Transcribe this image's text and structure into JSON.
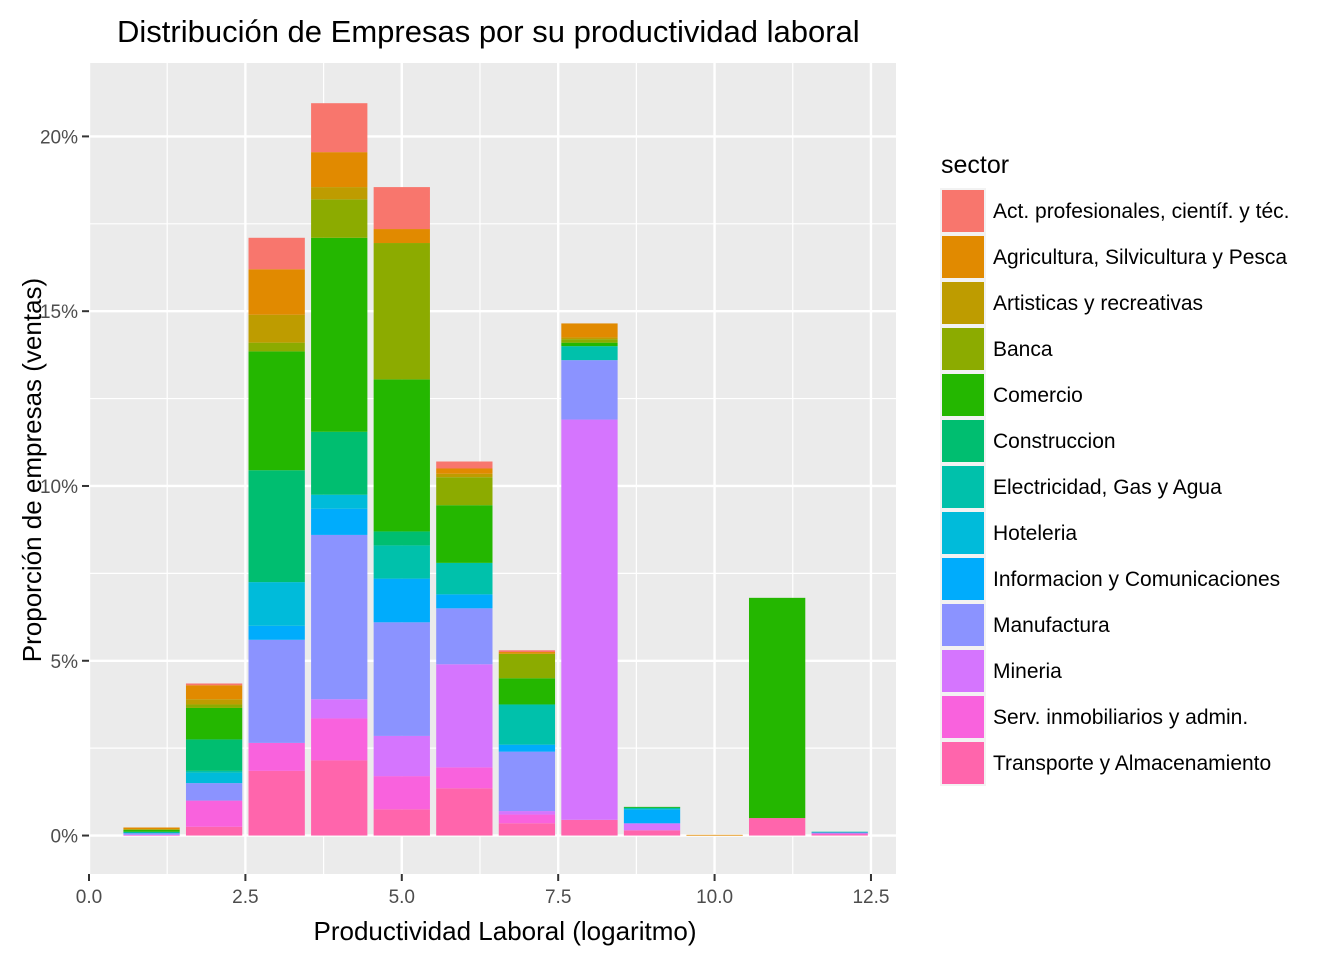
{
  "chart_data": {
    "type": "bar",
    "stacked": true,
    "title": "Distribución de Empresas por su productividad laboral",
    "xlabel": "Productividad Laboral (logaritmo)",
    "ylabel": "Proporción de empresas (ventas)",
    "xlim": [
      0,
      12.9
    ],
    "ylim": [
      -1.1,
      22.1
    ],
    "x_ticks": [
      0.0,
      2.5,
      5.0,
      7.5,
      10.0,
      12.5
    ],
    "x_tick_labels": [
      "0.0",
      "2.5",
      "5.0",
      "7.5",
      "10.0",
      "12.5"
    ],
    "y_ticks": [
      0,
      5,
      10,
      15,
      20
    ],
    "y_tick_labels": [
      "0%",
      "5%",
      "10%",
      "15%",
      "20%"
    ],
    "grid": true,
    "bar_width": 0.9,
    "x": [
      1,
      2,
      3,
      4,
      5,
      6,
      7,
      8,
      9,
      10,
      11,
      12
    ],
    "legend": {
      "title": "sector",
      "position": "right"
    },
    "series": [
      {
        "name": "Act. profesionales, científ. y téc.",
        "color": "#F8766D",
        "values": [
          0.0,
          0.05,
          0.9,
          1.4,
          1.2,
          0.2,
          0.05,
          0.0,
          0.0,
          0.0,
          0.0,
          0.0
        ]
      },
      {
        "name": "Agricultura, Silvicultura y Pesca",
        "color": "#E18A00",
        "values": [
          0.05,
          0.4,
          1.3,
          1.0,
          0.4,
          0.15,
          0.05,
          0.4,
          0.0,
          0.02,
          0.0,
          0.0
        ]
      },
      {
        "name": "Artisticas y recreativas",
        "color": "#BE9C00",
        "values": [
          0.0,
          0.15,
          0.8,
          0.35,
          0.0,
          0.1,
          0.0,
          0.05,
          0.0,
          0.0,
          0.0,
          0.0
        ]
      },
      {
        "name": "Banca",
        "color": "#8CAB00",
        "values": [
          0.02,
          0.1,
          0.25,
          1.1,
          3.9,
          0.8,
          0.7,
          0.1,
          0.0,
          0.0,
          0.0,
          0.0
        ]
      },
      {
        "name": "Comercio",
        "color": "#24B700",
        "values": [
          0.05,
          0.9,
          3.4,
          5.55,
          4.35,
          1.65,
          0.75,
          0.1,
          0.02,
          0.0,
          6.3,
          0.0
        ]
      },
      {
        "name": "Construccion",
        "color": "#00BE70",
        "values": [
          0.02,
          0.9,
          3.2,
          1.8,
          0.4,
          0.0,
          0.0,
          0.0,
          0.0,
          0.0,
          0.0,
          0.0
        ]
      },
      {
        "name": "Electricidad, Gas y Agua",
        "color": "#00C1AB",
        "values": [
          0.0,
          0.05,
          0.0,
          0.0,
          0.95,
          0.9,
          1.15,
          0.4,
          0.05,
          0.0,
          0.0,
          0.02
        ]
      },
      {
        "name": "Hoteleria",
        "color": "#00BBDA",
        "values": [
          0.02,
          0.3,
          1.25,
          0.4,
          0.0,
          0.0,
          0.0,
          0.0,
          0.0,
          0.0,
          0.0,
          0.0
        ]
      },
      {
        "name": "Informacion y Comunicaciones",
        "color": "#00ACFC",
        "values": [
          0.0,
          0.0,
          0.4,
          0.75,
          1.25,
          0.4,
          0.2,
          0.0,
          0.4,
          0.0,
          0.0,
          0.0
        ]
      },
      {
        "name": "Manufactura",
        "color": "#8B93FF",
        "values": [
          0.05,
          0.5,
          2.95,
          4.7,
          3.25,
          1.6,
          1.7,
          1.7,
          0.0,
          0.0,
          0.0,
          0.03
        ]
      },
      {
        "name": "Mineria",
        "color": "#D575FE",
        "values": [
          0.0,
          0.0,
          0.0,
          0.55,
          1.15,
          2.95,
          0.1,
          11.45,
          0.2,
          0.0,
          0.0,
          0.0
        ]
      },
      {
        "name": "Serv. inmobiliarios y admin.",
        "color": "#F962DD",
        "values": [
          0.02,
          0.75,
          0.8,
          1.2,
          0.95,
          0.6,
          0.25,
          0.0,
          0.0,
          0.0,
          0.0,
          0.03
        ]
      },
      {
        "name": "Transporte y Almacenamiento",
        "color": "#FF65AC",
        "values": [
          0.0,
          0.25,
          1.85,
          2.15,
          0.75,
          1.35,
          0.35,
          0.45,
          0.15,
          0.0,
          0.5,
          0.03
        ]
      }
    ]
  }
}
